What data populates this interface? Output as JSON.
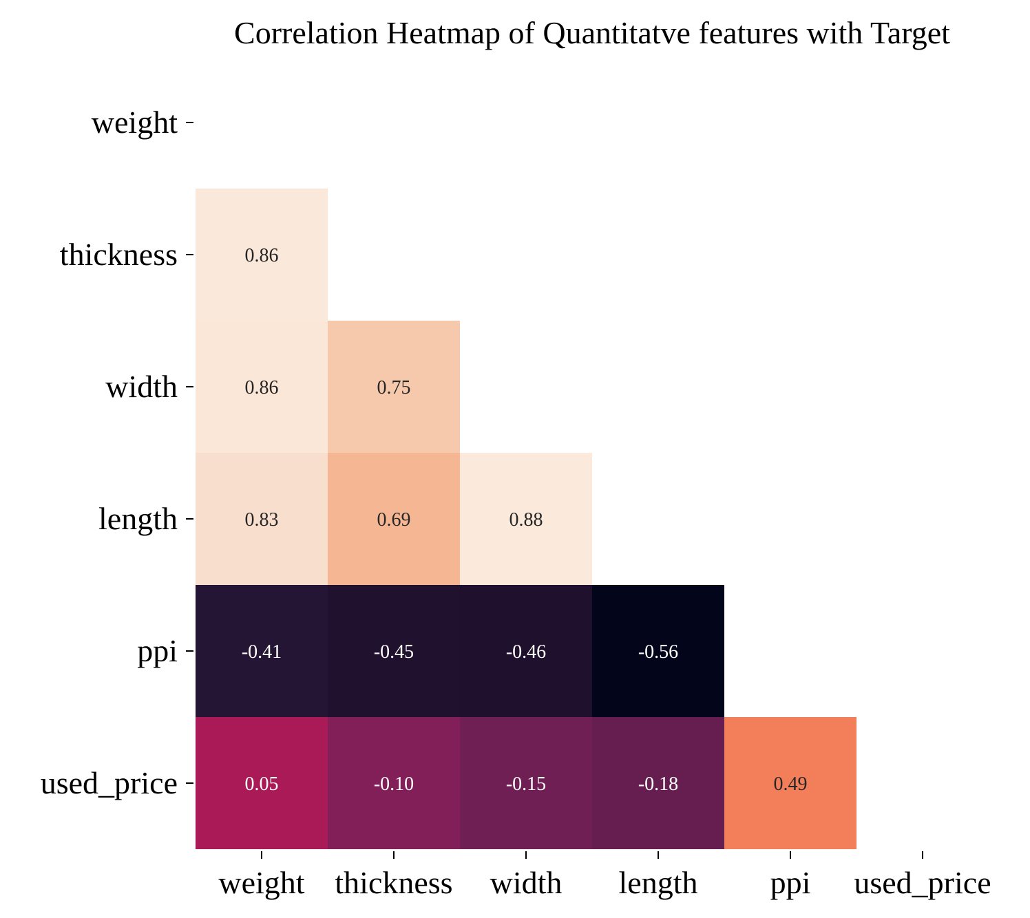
{
  "chart_data": {
    "type": "heatmap",
    "title": "Correlation Heatmap of Quantitatve features with Target",
    "labels": [
      "weight",
      "thickness",
      "width",
      "length",
      "ppi",
      "used_price"
    ],
    "mask": "upper-triangle-including-diagonal",
    "colormap": "rocket",
    "value_range": [
      -0.56,
      0.88
    ],
    "cells": [
      {
        "row": "thickness",
        "col": "weight",
        "value": 0.86,
        "label": "0.86",
        "color": "#FAE9DA"
      },
      {
        "row": "width",
        "col": "weight",
        "value": 0.86,
        "label": "0.86",
        "color": "#FAE7D8"
      },
      {
        "row": "width",
        "col": "thickness",
        "value": 0.75,
        "label": "0.75",
        "color": "#F7C9AC"
      },
      {
        "row": "length",
        "col": "weight",
        "value": 0.83,
        "label": "0.83",
        "color": "#F8DECC"
      },
      {
        "row": "length",
        "col": "thickness",
        "value": 0.69,
        "label": "0.69",
        "color": "#F5B793"
      },
      {
        "row": "length",
        "col": "width",
        "value": 0.88,
        "label": "0.88",
        "color": "#FBEADB"
      },
      {
        "row": "ppi",
        "col": "weight",
        "value": -0.41,
        "label": "-0.41",
        "color": "#251535"
      },
      {
        "row": "ppi",
        "col": "thickness",
        "value": -0.45,
        "label": "-0.45",
        "color": "#20122F"
      },
      {
        "row": "ppi",
        "col": "width",
        "value": -0.46,
        "label": "-0.46",
        "color": "#1F112D"
      },
      {
        "row": "ppi",
        "col": "length",
        "value": -0.56,
        "label": "-0.56",
        "color": "#03051A"
      },
      {
        "row": "used_price",
        "col": "weight",
        "value": 0.05,
        "label": "0.05",
        "color": "#AA1A56"
      },
      {
        "row": "used_price",
        "col": "thickness",
        "value": -0.1,
        "label": "-0.10",
        "color": "#821E58"
      },
      {
        "row": "used_price",
        "col": "width",
        "value": -0.15,
        "label": "-0.15",
        "color": "#701F54"
      },
      {
        "row": "used_price",
        "col": "length",
        "value": -0.18,
        "label": "-0.18",
        "color": "#661E51"
      },
      {
        "row": "used_price",
        "col": "ppi",
        "value": 0.49,
        "label": "0.49",
        "color": "#F37E5A"
      }
    ]
  }
}
